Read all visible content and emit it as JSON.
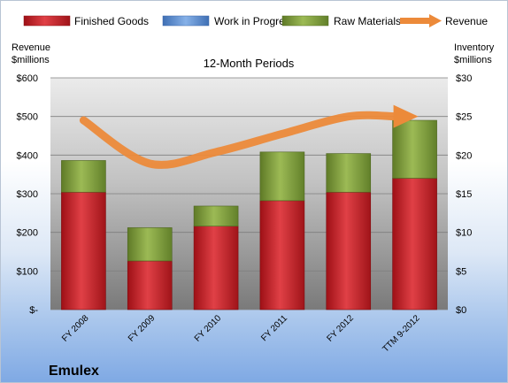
{
  "chart_data": {
    "type": "bar",
    "title": "12-Month Periods",
    "company": "Emulex",
    "categories": [
      "FY 2008",
      "FY 2009",
      "FY 2010",
      "FY 2011",
      "FY 2012",
      "TTM 9-2012"
    ],
    "left_axis": {
      "label_line1": "Revenue",
      "label_line2": "$millions",
      "ylim": [
        0,
        600
      ],
      "ticks": [
        0,
        100,
        200,
        300,
        400,
        500,
        600
      ],
      "tick_labels": [
        "$-",
        "$100",
        "$200",
        "$300",
        "$400",
        "$500",
        "$600"
      ]
    },
    "right_axis": {
      "label_line1": "Inventory",
      "label_line2": "$millions",
      "ylim": [
        0,
        30
      ],
      "ticks": [
        0,
        5,
        10,
        15,
        20,
        25,
        30
      ],
      "tick_labels": [
        "$0",
        "$5",
        "$10",
        "$15",
        "$20",
        "$25",
        "$30"
      ]
    },
    "series": [
      {
        "name": "Finished Goods",
        "axis": "right",
        "stack": true,
        "color": "#c0242a",
        "values": [
          15.2,
          6.3,
          10.8,
          14.1,
          15.2,
          17.0
        ]
      },
      {
        "name": "Work in Progress",
        "axis": "right",
        "stack": true,
        "color": "#5b8fd6",
        "values": [
          0,
          0,
          0,
          0,
          0,
          0
        ]
      },
      {
        "name": "Raw Materials",
        "axis": "right",
        "stack": true,
        "color": "#7d9a3a",
        "values": [
          4.1,
          4.3,
          2.6,
          6.3,
          5.0,
          7.5
        ]
      },
      {
        "name": "Revenue",
        "axis": "left",
        "type": "line",
        "color": "#ec8a3a",
        "values": [
          490,
          378,
          408,
          455,
          500,
          500
        ]
      }
    ],
    "grid": true,
    "legend_position": "top"
  }
}
